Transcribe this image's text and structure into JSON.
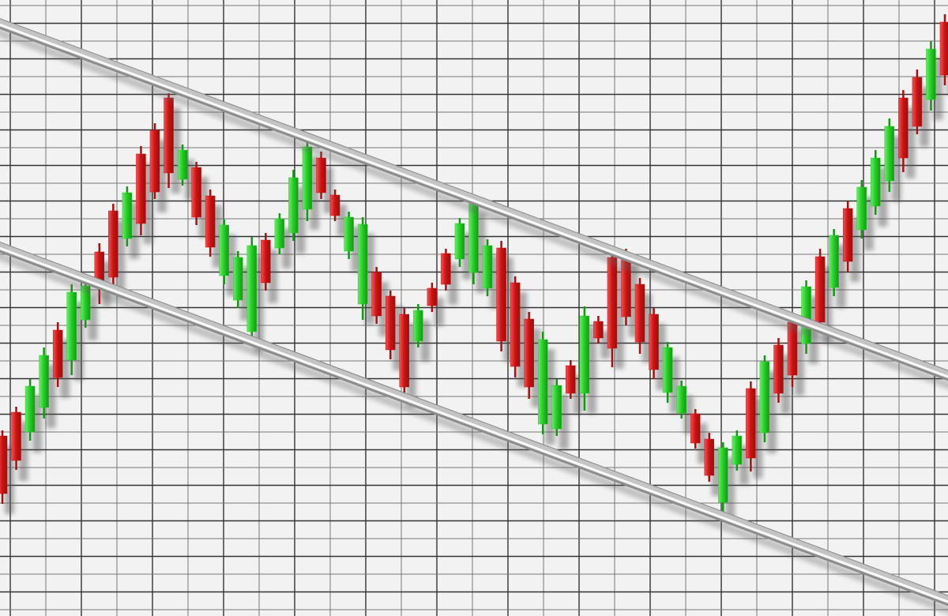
{
  "chart_data": {
    "type": "candlestick",
    "title": "",
    "xlabel": "",
    "ylabel": "",
    "ylim": [
      0,
      78
    ],
    "grid": true,
    "colors": {
      "up": "#22cc22",
      "down": "#cc1111",
      "background": "#f2f2f2",
      "grid": "#444444",
      "trendline": "#b8b8b8"
    },
    "candles_format": [
      "open",
      "high",
      "low",
      "close"
    ],
    "candles": [
      [
        22.8,
        23.5,
        14.2,
        15.5
      ],
      [
        25.8,
        26.5,
        18.5,
        19.7
      ],
      [
        23.3,
        30,
        22.2,
        29.1
      ],
      [
        26.4,
        34,
        25,
        33
      ],
      [
        36.2,
        37.2,
        29,
        30.2
      ],
      [
        32.4,
        42,
        30.5,
        41
      ],
      [
        37.5,
        43.2,
        36.5,
        41.8
      ],
      [
        46.1,
        47.2,
        39.5,
        41.8
      ],
      [
        51.3,
        52.2,
        41.5,
        42.9
      ],
      [
        47.8,
        54.4,
        46.8,
        53.6
      ],
      [
        58.5,
        59.5,
        48.2,
        49.7
      ],
      [
        61.5,
        62.4,
        52.8,
        53.7
      ],
      [
        65.6,
        66.2,
        54.2,
        56.1
      ],
      [
        55.3,
        59.7,
        54.5,
        59
      ],
      [
        56.8,
        57.5,
        49.5,
        50.5
      ],
      [
        53.2,
        54,
        45.5,
        46.7
      ],
      [
        43.1,
        50.2,
        42,
        49.5
      ],
      [
        40,
        46.2,
        39,
        45.4
      ],
      [
        36,
        48,
        35,
        46.9
      ],
      [
        47.6,
        48.5,
        41.2,
        42.2
      ],
      [
        46.6,
        51,
        45.8,
        50.3
      ],
      [
        48.5,
        56.5,
        47.5,
        55.5
      ],
      [
        51.5,
        60,
        50,
        59.4
      ],
      [
        58,
        58.8,
        52.8,
        53.6
      ],
      [
        53.3,
        54,
        50,
        50.7
      ],
      [
        46.2,
        51.2,
        45.2,
        50.5
      ],
      [
        39.5,
        50.5,
        37.5,
        49.6
      ],
      [
        43.5,
        44.2,
        37,
        38
      ],
      [
        40.5,
        41.2,
        32.5,
        33.7
      ],
      [
        38.2,
        39,
        27,
        29
      ],
      [
        34.8,
        39.5,
        34,
        38.7
      ],
      [
        41.5,
        42.2,
        38.5,
        39.3
      ],
      [
        45.9,
        46.5,
        41.2,
        42
      ],
      [
        45.2,
        50.4,
        44.2,
        49.7
      ],
      [
        43.5,
        53,
        42,
        52.2
      ],
      [
        41.5,
        47.7,
        40.5,
        46.9
      ],
      [
        46.6,
        47.5,
        33.5,
        34.8
      ],
      [
        42.2,
        43,
        30.2,
        31.6
      ],
      [
        37.6,
        38.5,
        27.5,
        29
      ],
      [
        24.3,
        36,
        23,
        35
      ],
      [
        23.7,
        30,
        22.8,
        29.2
      ],
      [
        31.7,
        32.4,
        27.5,
        28.2
      ],
      [
        28.2,
        39.2,
        26,
        38
      ],
      [
        37.3,
        38,
        34.5,
        35.2
      ],
      [
        45.4,
        46.2,
        31.5,
        33.9
      ],
      [
        45.7,
        46.5,
        36.8,
        37.9
      ],
      [
        42,
        42.8,
        33.2,
        34.7
      ],
      [
        38.2,
        39,
        30,
        31.2
      ],
      [
        28.3,
        34.7,
        27,
        34
      ],
      [
        25.7,
        29.8,
        25,
        29.1
      ],
      [
        25.6,
        26.2,
        21.2,
        21.9
      ],
      [
        22.4,
        23.2,
        17,
        17.8
      ],
      [
        14.4,
        22,
        13,
        21.3
      ],
      [
        19.2,
        23.5,
        18.4,
        22.8
      ],
      [
        28.8,
        29.7,
        18.3,
        20
      ],
      [
        23.2,
        33,
        22,
        32.2
      ],
      [
        34.3,
        35.2,
        27,
        28.2
      ],
      [
        37.2,
        38.2,
        29,
        30.5
      ],
      [
        34.5,
        42.5,
        33.2,
        41.7
      ],
      [
        45.5,
        46.5,
        36,
        37.2
      ],
      [
        41.6,
        49,
        40.5,
        48.2
      ],
      [
        51.6,
        52.5,
        43.5,
        44.9
      ],
      [
        48.9,
        55.2,
        47.8,
        54.3
      ],
      [
        51.9,
        59,
        50.8,
        58
      ],
      [
        55.1,
        63,
        53.7,
        62
      ],
      [
        65.6,
        66.6,
        56.2,
        58
      ],
      [
        68.2,
        69.2,
        61,
        62
      ],
      [
        65.4,
        72.8,
        64,
        71.8
      ],
      [
        75.2,
        76.2,
        67.2,
        68.5
      ]
    ],
    "trendlines": [
      {
        "role": "upper-channel",
        "from": [
          0,
          74.9
        ],
        "to": [
          68,
          30.6
        ]
      },
      {
        "role": "lower-channel",
        "from": [
          0,
          46.6
        ],
        "to": [
          68,
          2.1
        ]
      }
    ]
  }
}
